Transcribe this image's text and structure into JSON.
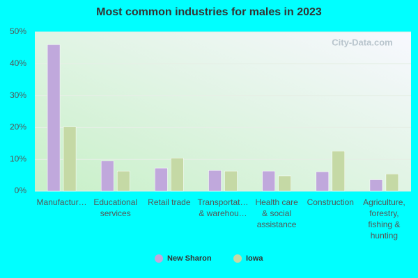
{
  "chart_data": {
    "type": "bar",
    "title": "Most common industries for males in 2023",
    "watermark": "City-Data.com",
    "categories": [
      [
        "Manufactur…"
      ],
      [
        "Educational",
        "services"
      ],
      [
        "Retail trade"
      ],
      [
        "Transportat…",
        "& warehou…"
      ],
      [
        "Health care",
        "& social",
        "assistance"
      ],
      [
        "Construction"
      ],
      [
        "Agriculture,",
        "forestry,",
        "fishing &",
        "hunting"
      ]
    ],
    "series": [
      {
        "name": "New Sharon",
        "color": "#c0a8dc",
        "values": [
          46,
          9.5,
          7.2,
          6.5,
          6.3,
          6.1,
          3.6
        ]
      },
      {
        "name": "Iowa",
        "color": "#c5d9a5",
        "values": [
          20.2,
          6.3,
          10.4,
          6.3,
          4.8,
          12.6,
          5.4
        ]
      }
    ],
    "ylim": [
      0,
      50
    ],
    "yticks": [
      {
        "value": 0,
        "label": "0%"
      },
      {
        "value": 10,
        "label": "10%"
      },
      {
        "value": 20,
        "label": "20%"
      },
      {
        "value": 30,
        "label": "30%"
      },
      {
        "value": 40,
        "label": "40%"
      },
      {
        "value": 50,
        "label": "50%"
      }
    ],
    "grid": true
  }
}
